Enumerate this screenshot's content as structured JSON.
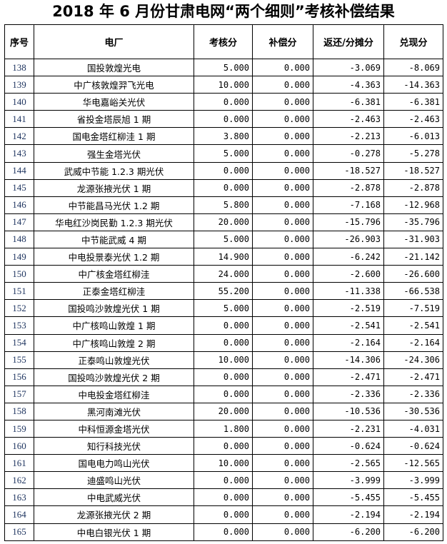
{
  "title": "2018 年 6 月份甘肃电网“两个细则”考核补偿结果",
  "headers": [
    "序号",
    "电厂",
    "考核分",
    "补偿分",
    "返还/分摊分",
    "兑现分"
  ],
  "rows": [
    [
      "138",
      "国投敦煌光电",
      "5.000",
      "0.000",
      "-3.069",
      "-8.069"
    ],
    [
      "139",
      "中广核敦煌羿飞光电",
      "10.000",
      "0.000",
      "-4.363",
      "-14.363"
    ],
    [
      "140",
      "华电嘉峪关光伏",
      "0.000",
      "0.000",
      "-6.381",
      "-6.381"
    ],
    [
      "141",
      "省投金塔辰旭 1 期",
      "0.000",
      "0.000",
      "-2.463",
      "-2.463"
    ],
    [
      "142",
      "国电金塔红柳洼 1 期",
      "3.800",
      "0.000",
      "-2.213",
      "-6.013"
    ],
    [
      "143",
      "强生金塔光伏",
      "5.000",
      "0.000",
      "-0.278",
      "-5.278"
    ],
    [
      "144",
      "武威中节能 1.2.3 期光伏",
      "0.000",
      "0.000",
      "-18.527",
      "-18.527"
    ],
    [
      "145",
      "龙源张掖光伏 1 期",
      "0.000",
      "0.000",
      "-2.878",
      "-2.878"
    ],
    [
      "146",
      "中节能昌马光伏 1.2 期",
      "5.800",
      "0.000",
      "-7.168",
      "-12.968"
    ],
    [
      "147",
      "华电红沙岗民勤 1.2.3 期光伏",
      "20.000",
      "0.000",
      "-15.796",
      "-35.796"
    ],
    [
      "148",
      "中节能武威 4 期",
      "5.000",
      "0.000",
      "-26.903",
      "-31.903"
    ],
    [
      "149",
      "中电投景泰光伏 1.2 期",
      "14.900",
      "0.000",
      "-6.242",
      "-21.142"
    ],
    [
      "150",
      "中广核金塔红柳洼",
      "24.000",
      "0.000",
      "-2.600",
      "-26.600"
    ],
    [
      "151",
      "正泰金塔红柳洼",
      "55.200",
      "0.000",
      "-11.338",
      "-66.538"
    ],
    [
      "152",
      "国投鸣沙敦煌光伏 1 期",
      "5.000",
      "0.000",
      "-2.519",
      "-7.519"
    ],
    [
      "153",
      "中广核鸣山敦煌 1 期",
      "0.000",
      "0.000",
      "-2.541",
      "-2.541"
    ],
    [
      "154",
      "中广核鸣山敦煌 2 期",
      "0.000",
      "0.000",
      "-2.164",
      "-2.164"
    ],
    [
      "155",
      "正泰鸣山敦煌光伏",
      "10.000",
      "0.000",
      "-14.306",
      "-24.306"
    ],
    [
      "156",
      "国投鸣沙敦煌光伏 2 期",
      "0.000",
      "0.000",
      "-2.471",
      "-2.471"
    ],
    [
      "157",
      "中电投金塔红柳洼",
      "0.000",
      "0.000",
      "-2.336",
      "-2.336"
    ],
    [
      "158",
      "黑河南滩光伏",
      "20.000",
      "0.000",
      "-10.536",
      "-30.536"
    ],
    [
      "159",
      "中科恒源金塔光伏",
      "1.800",
      "0.000",
      "-2.231",
      "-4.031"
    ],
    [
      "160",
      "知行科技光伏",
      "0.000",
      "0.000",
      "-0.624",
      "-0.624"
    ],
    [
      "161",
      "国电电力鸣山光伏",
      "10.000",
      "0.000",
      "-2.565",
      "-12.565"
    ],
    [
      "162",
      "迪盛鸣山光伏",
      "0.000",
      "0.000",
      "-3.999",
      "-3.999"
    ],
    [
      "163",
      "中电武威光伏",
      "0.000",
      "0.000",
      "-5.455",
      "-5.455"
    ],
    [
      "164",
      "龙源张掖光伏 2 期",
      "0.000",
      "0.000",
      "-2.194",
      "-2.194"
    ],
    [
      "165",
      "中电白银光伏 1 期",
      "0.000",
      "0.000",
      "-6.200",
      "-6.200"
    ]
  ]
}
